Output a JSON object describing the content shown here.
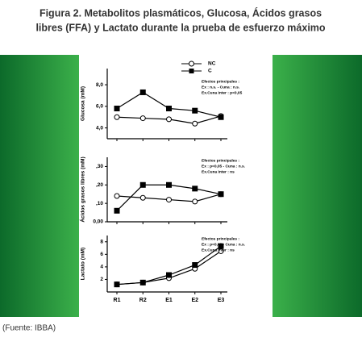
{
  "figure": {
    "title": [
      "Figura 2. Metabolitos plasmáticos, Glucosa, Ácidos grasos",
      "libres (FFA) y Lactato durante la prueba de esfuerzo máximo"
    ],
    "source": "(Fuente: IBBA)"
  },
  "chart_data": [
    {
      "type": "line",
      "y_label": "Glucosa (mM)",
      "categories": [
        null,
        null,
        null,
        null,
        null
      ],
      "series": [
        {
          "name": "NC",
          "color": "#ffffff",
          "values": [
            5.0,
            4.9,
            4.8,
            4.4,
            5.1
          ]
        },
        {
          "name": "C",
          "color": "#000000",
          "values": [
            5.8,
            7.3,
            5.8,
            5.6,
            5.0
          ]
        }
      ],
      "ylim": [
        3,
        9.5
      ],
      "yticks": [
        {
          "value": 4,
          "label": "4,0"
        },
        {
          "value": 6,
          "label": "6,0"
        },
        {
          "value": 8,
          "label": "8,0"
        }
      ],
      "annotation": [
        "Efectos principales :",
        "Ex : n.s. - Cuna : n.s.",
        "Ex.Cuna Inter : p<0,05"
      ]
    },
    {
      "type": "line",
      "y_label": "Ácidos grasos libres (mM)",
      "categories": [
        null,
        null,
        null,
        null,
        null
      ],
      "series": [
        {
          "color": "#ffffff",
          "values": [
            0.14,
            0.13,
            0.12,
            0.11,
            0.15
          ]
        },
        {
          "color": "#000000",
          "values": [
            0.06,
            0.2,
            0.2,
            0.18,
            0.15
          ]
        }
      ],
      "ylim": [
        0,
        0.35
      ],
      "yticks": [
        {
          "value": 0,
          "label": "0,00"
        },
        {
          "value": 0.1,
          "label": ",10"
        },
        {
          "value": 0.2,
          "label": ",20"
        },
        {
          "value": 0.3,
          "label": ",30"
        }
      ],
      "annotation": [
        "Efectos principales :",
        "Ex : p<0,05 - Cuna : n.s.",
        "Ex.Cuna Inter : ns"
      ]
    },
    {
      "type": "line",
      "y_label": "Lactato (mM)",
      "categories": [
        "R1",
        "R2",
        "E1",
        "E2",
        "E3"
      ],
      "series": [
        {
          "color": "#ffffff",
          "values": [
            1.2,
            1.5,
            2.2,
            3.7,
            6.5
          ]
        },
        {
          "color": "#000000",
          "values": [
            1.2,
            1.5,
            2.7,
            4.3,
            7.3
          ]
        }
      ],
      "ylim": [
        0,
        9
      ],
      "yticks": [
        2,
        4,
        6,
        8
      ],
      "annotation": [
        "Efectos principales :",
        "Ex : p<0,05 - Cuna : n.s.",
        "Ex.Cuna Inter : ns"
      ]
    }
  ]
}
